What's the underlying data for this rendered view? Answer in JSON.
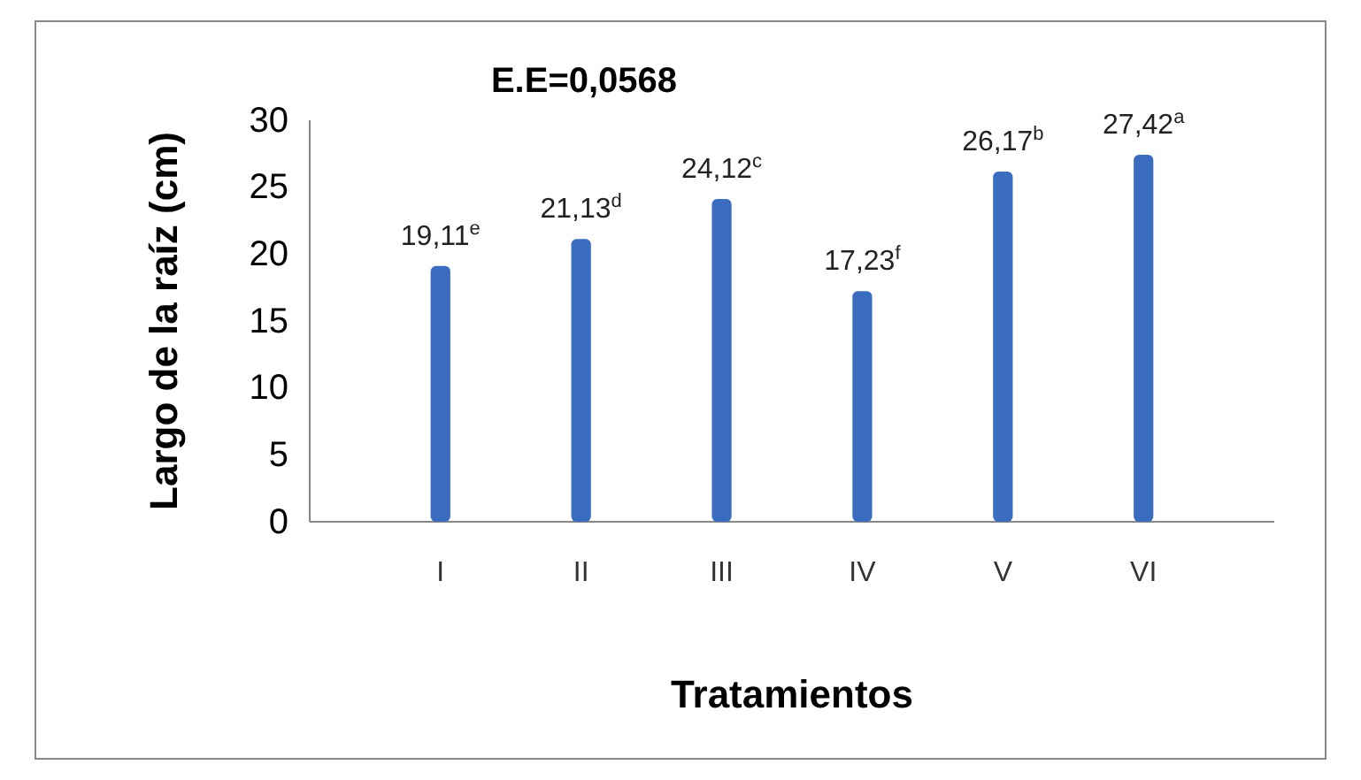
{
  "chart_data": {
    "type": "bar",
    "title": "E.E=0,0568",
    "xlabel": "Tratamientos",
    "ylabel": "Largo de la raíz (cm)",
    "categories": [
      "I",
      "II",
      "III",
      "IV",
      "V",
      "VI"
    ],
    "values": [
      19.11,
      21.13,
      24.12,
      17.23,
      26.17,
      27.42
    ],
    "value_labels": [
      "19,11$^{e}$",
      "21,13$^{d}$",
      "24,12$^{c}$",
      "17,23$^{f}$",
      "26,17$^{b}$",
      "27,42$^{a}$"
    ],
    "color": "#3a6cc0",
    "ylim": [
      0,
      30
    ],
    "yticks": [
      0,
      5,
      10,
      15,
      20,
      25,
      30
    ],
    "grid": false
  }
}
